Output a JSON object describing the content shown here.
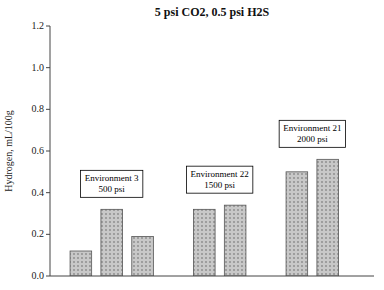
{
  "chart_data": {
    "type": "bar",
    "title": "5 psi CO2, 0.5 psi H2S",
    "ylabel": "Hydrogen, mL/100g",
    "categories": [
      null,
      null,
      null,
      null,
      null,
      null,
      null
    ],
    "values": [
      0.12,
      0.32,
      0.19,
      0.32,
      0.34,
      0.5,
      0.56
    ],
    "color": "#c8c8c8",
    "ylim": [
      0,
      1.2
    ],
    "yticks": [
      {
        "value": 0,
        "label": "0.0"
      },
      0.2,
      0.4,
      0.6,
      0.8,
      {
        "value": 1.0,
        "label": "1.0"
      },
      1.2
    ],
    "annotations": [
      "Environment 3\n500 psi",
      "Environment 22\n1500 psi",
      "Environment 21\n2000 psi"
    ],
    "grid": false
  }
}
